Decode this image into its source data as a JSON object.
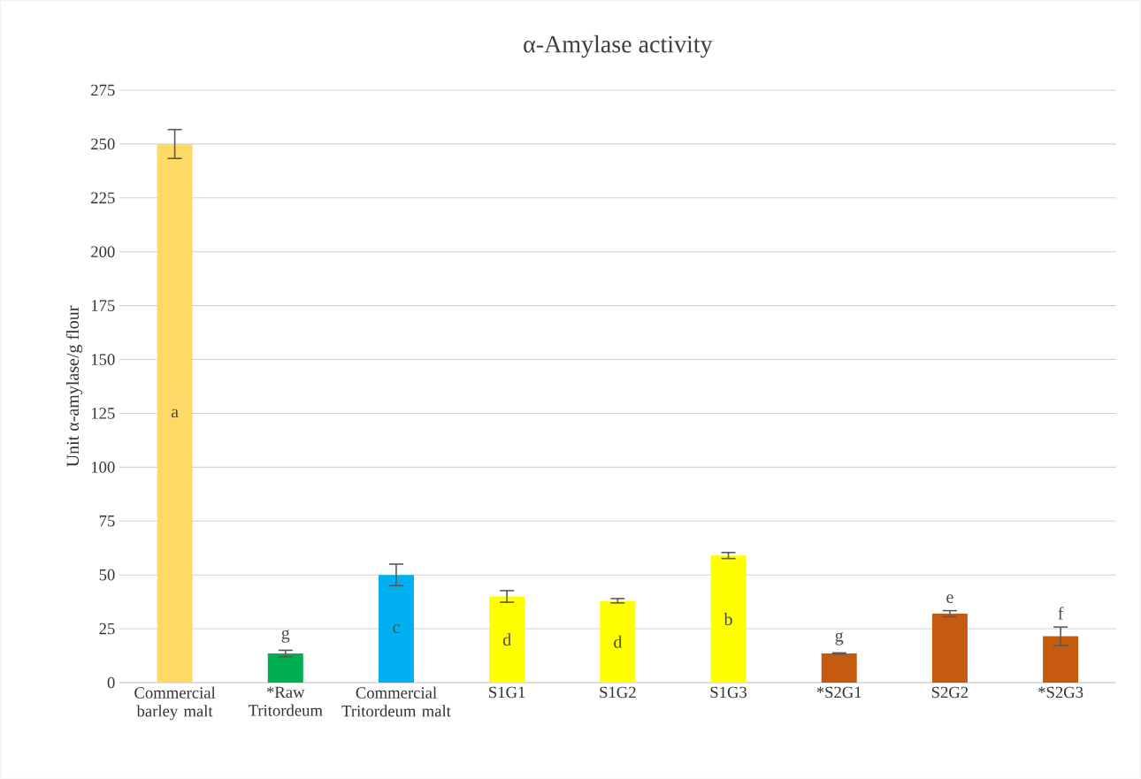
{
  "chart_data": {
    "type": "bar",
    "title": "α-Amylase activity",
    "ylabel": "Unit α-amylase/g flour",
    "categories": [
      "Commercial barley malt",
      "*Raw Tritordeum",
      "Commercial Tritordeum malt",
      "S1G1",
      "S1G2",
      "S1G3",
      "*S2G1",
      "S2G2",
      "*S2G3"
    ],
    "values": [
      250,
      13.5,
      50,
      40,
      38,
      59,
      13.5,
      32,
      21.5
    ],
    "errors": [
      6.7,
      1.5,
      5,
      2.7,
      1,
      1.4,
      0.3,
      1.4,
      4.3
    ],
    "colors": [
      "#ffd966",
      "#00b050",
      "#00b0f0",
      "#ffff00",
      "#ffff00",
      "#ffff00",
      "#c55a11",
      "#c55a11",
      "#c55a11"
    ],
    "ylim": [
      0,
      275
    ],
    "yticks": [
      0,
      25,
      50,
      75,
      100,
      125,
      150,
      175,
      200,
      225,
      250,
      275
    ],
    "grid": "y",
    "annotations": [
      "a",
      "g",
      "c",
      "d",
      "d",
      "b",
      "g",
      "e",
      "f"
    ]
  }
}
